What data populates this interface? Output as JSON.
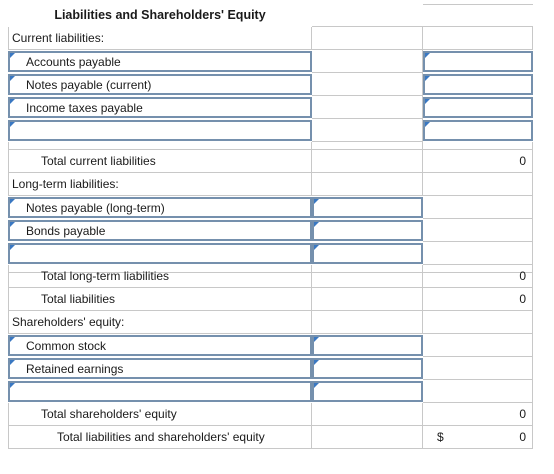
{
  "title": "Liabilities and Shareholders' Equity",
  "sections": {
    "current": {
      "header": "Current liabilities:",
      "items": [
        "Accounts payable",
        "Notes payable (current)",
        "Income taxes payable",
        ""
      ],
      "total_label": "Total current liabilities",
      "total_value": "0"
    },
    "long_term": {
      "header": "Long-term liabilities:",
      "items": [
        "Notes payable (long-term)",
        "Bonds payable",
        ""
      ],
      "total_label": "Total long-term liabilities",
      "total_value": "0"
    },
    "total_liabilities": {
      "label": "Total liabilities",
      "value": "0"
    },
    "equity": {
      "header": "Shareholders' equity:",
      "items": [
        "Common stock",
        "Retained earnings",
        ""
      ],
      "total_label": "Total shareholders' equity",
      "total_value": "0"
    },
    "grand_total": {
      "label": "Total liabilities and shareholders' equity",
      "currency": "$",
      "value": "0"
    }
  },
  "colors": {
    "input_border": "#7590ad",
    "input_marker": "#3a78c2",
    "grid": "#c8c8c8"
  }
}
